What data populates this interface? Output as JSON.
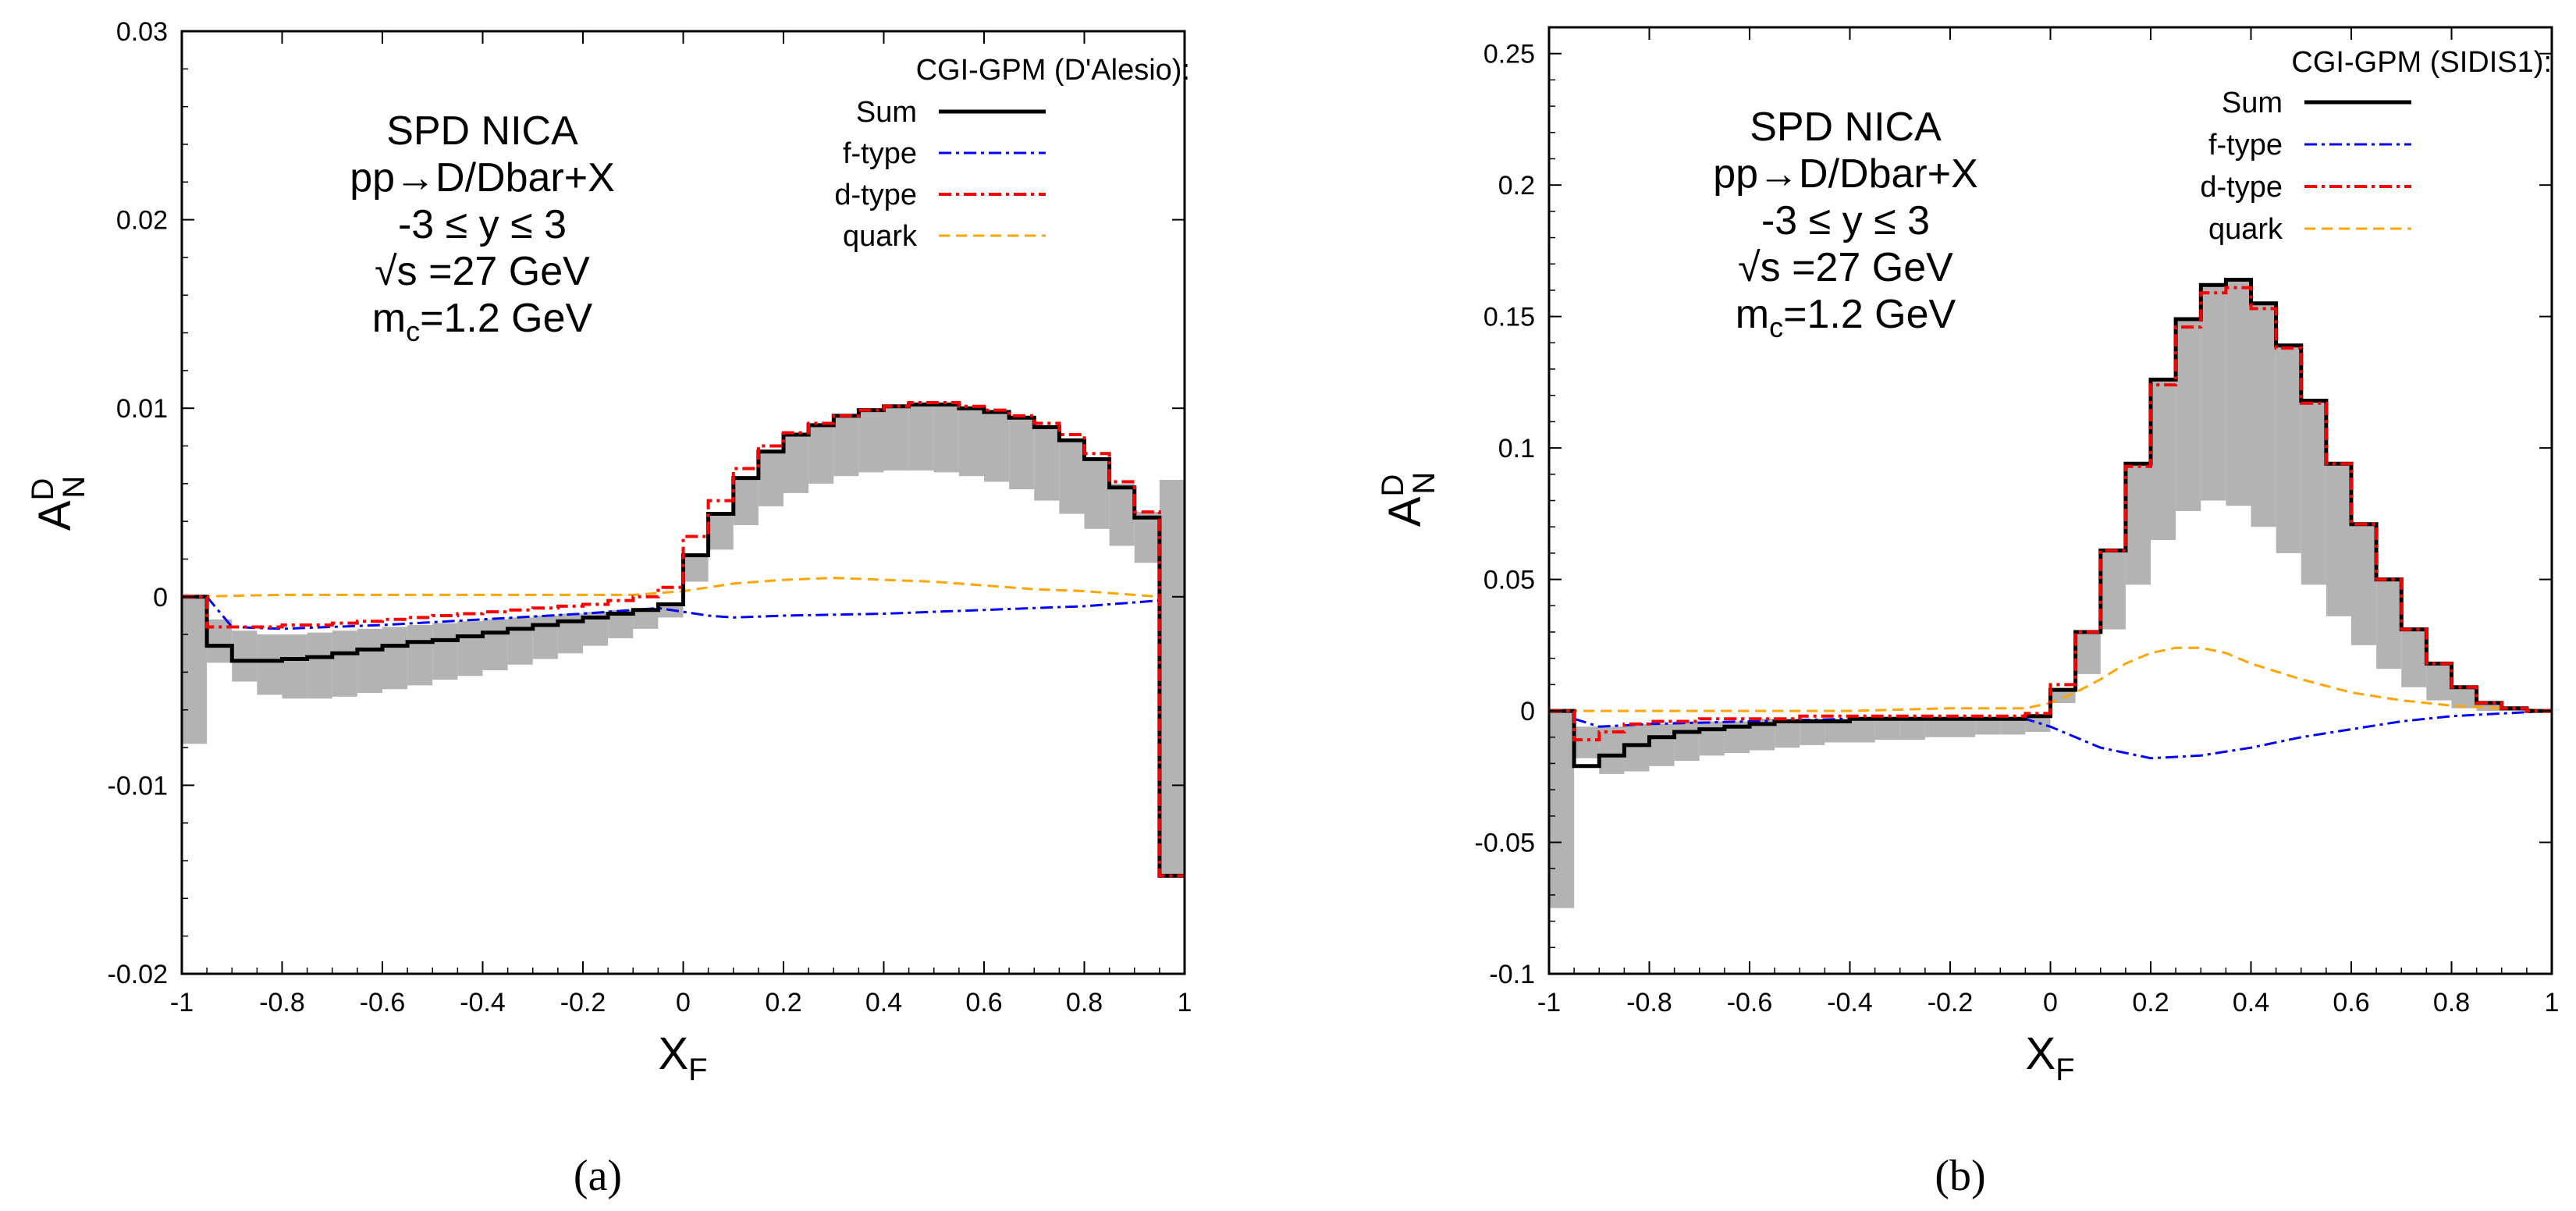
{
  "chart_data": [
    {
      "id": "a",
      "type": "line",
      "caption": "(a)",
      "xlabel": "X",
      "xlabel_sub": "F",
      "ylabel": "A",
      "ylabel_sup": "D",
      "ylabel_sub": "N",
      "xlim": [
        -1,
        1
      ],
      "ylim": [
        -0.02,
        0.03
      ],
      "xticks": [
        "-1",
        "-0.8",
        "-0.6",
        "-0.4",
        "-0.2",
        "0",
        "0.2",
        "0.4",
        "0.6",
        "0.8",
        "1"
      ],
      "yticks": [
        "-0.02",
        "-0.01",
        "0",
        "0.01",
        "0.02",
        "0.03"
      ],
      "xtick_values": [
        -1,
        -0.8,
        -0.6,
        -0.4,
        -0.2,
        0,
        0.2,
        0.4,
        0.6,
        0.8,
        1
      ],
      "ytick_values": [
        -0.02,
        -0.01,
        0,
        0.01,
        0.02,
        0.03
      ],
      "annotations": [
        "SPD NICA",
        "pp→D/Dbar+X",
        "-3 ≤ y ≤ 3",
        "√s =27 GeV"
      ],
      "mass_label": "m",
      "mass_sub": "c",
      "mass_value": "=1.2 GeV",
      "legend_title": "CGI-GPM (D'Alesio):",
      "bin_edges": [
        -1,
        -0.95,
        -0.9,
        -0.85,
        -0.8,
        -0.75,
        -0.7,
        -0.65,
        -0.6,
        -0.55,
        -0.5,
        -0.45,
        -0.4,
        -0.35,
        -0.3,
        -0.25,
        -0.2,
        -0.15,
        -0.1,
        -0.05,
        0,
        0.05,
        0.1,
        0.15,
        0.2,
        0.25,
        0.3,
        0.35,
        0.4,
        0.45,
        0.5,
        0.55,
        0.6,
        0.65,
        0.7,
        0.75,
        0.8,
        0.85,
        0.9,
        0.95,
        1
      ],
      "band": {
        "name": "uncertainty band",
        "color": "#b3b3b3",
        "upper": [
          0,
          -0.0012,
          -0.0018,
          -0.002,
          -0.002,
          -0.0019,
          -0.0018,
          -0.0017,
          -0.0016,
          -0.0015,
          -0.0014,
          -0.0013,
          -0.0012,
          -0.0011,
          -0.001,
          -0.0009,
          -0.0008,
          -0.0007,
          -0.0006,
          -0.0003,
          0.0022,
          0.0044,
          0.0063,
          0.0077,
          0.0086,
          0.0091,
          0.0096,
          0.0099,
          0.0101,
          0.0102,
          0.0102,
          0.01,
          0.0098,
          0.0095,
          0.009,
          0.0083,
          0.0073,
          0.006,
          0.0045,
          0.0062
        ],
        "lower": [
          -0.0078,
          -0.0035,
          -0.0045,
          -0.0052,
          -0.0054,
          -0.0054,
          -0.0053,
          -0.0051,
          -0.0049,
          -0.0047,
          -0.0044,
          -0.0042,
          -0.0039,
          -0.0036,
          -0.0033,
          -0.003,
          -0.0026,
          -0.0022,
          -0.0017,
          -0.0011,
          0.0008,
          0.0025,
          0.0038,
          0.0048,
          0.0055,
          0.006,
          0.0064,
          0.0066,
          0.0067,
          0.0067,
          0.0066,
          0.0064,
          0.0061,
          0.0057,
          0.0051,
          0.0044,
          0.0036,
          0.0027,
          0.0018,
          -0.0148
        ]
      },
      "series": [
        {
          "name": "Sum",
          "color": "#000000",
          "dash": "",
          "width": 5,
          "step": true,
          "values": [
            0,
            -0.0026,
            -0.0034,
            -0.0034,
            -0.0033,
            -0.0032,
            -0.003,
            -0.0028,
            -0.0026,
            -0.0024,
            -0.0023,
            -0.0021,
            -0.0019,
            -0.0017,
            -0.0015,
            -0.0013,
            -0.0011,
            -0.0009,
            -0.0007,
            -0.0004,
            0.0022,
            0.0044,
            0.0063,
            0.0077,
            0.0086,
            0.0091,
            0.0096,
            0.0099,
            0.0101,
            0.0102,
            0.0102,
            0.01,
            0.0098,
            0.0095,
            0.009,
            0.0083,
            0.0073,
            0.0058,
            0.0042,
            -0.0148
          ]
        },
        {
          "name": "f-type",
          "color": "#0000ff",
          "dash": "16,6,4,6",
          "width": 3,
          "step": false,
          "x": [
            -0.95,
            -0.9,
            -0.8,
            -0.6,
            -0.4,
            -0.2,
            -0.1,
            -0.05,
            0,
            0.05,
            0.1,
            0.2,
            0.4,
            0.6,
            0.8,
            0.95
          ],
          "values": [
            0,
            -0.0016,
            -0.0017,
            -0.0015,
            -0.0012,
            -0.0009,
            -0.0007,
            -0.0006,
            -0.0008,
            -0.001,
            -0.0011,
            -0.001,
            -0.0009,
            -0.0007,
            -0.0005,
            -0.0002
          ]
        },
        {
          "name": "d-type",
          "color": "#ff0000",
          "dash": "16,6,4,6",
          "width": 4,
          "step": true,
          "values": [
            0,
            -0.0016,
            -0.0016,
            -0.0016,
            -0.0015,
            -0.0015,
            -0.0014,
            -0.0013,
            -0.0012,
            -0.0011,
            -0.001,
            -0.0009,
            -0.0008,
            -0.0007,
            -0.0006,
            -0.0005,
            -0.0004,
            -0.0002,
            0,
            0.0005,
            0.0032,
            0.0051,
            0.0068,
            0.008,
            0.0087,
            0.0092,
            0.0096,
            0.0099,
            0.0101,
            0.0103,
            0.0103,
            0.0101,
            0.0099,
            0.0096,
            0.0092,
            0.0086,
            0.0076,
            0.0061,
            0.0045,
            -0.0148
          ]
        },
        {
          "name": "quark",
          "color": "#ffa500",
          "dash": "14,8",
          "width": 3,
          "step": false,
          "x": [
            -1,
            -0.8,
            -0.6,
            -0.4,
            -0.2,
            -0.1,
            0,
            0.1,
            0.2,
            0.3,
            0.4,
            0.5,
            0.6,
            0.7,
            0.8,
            0.9,
            0.95
          ],
          "values": [
            0,
            0.0001,
            0.0001,
            0.0001,
            0.0001,
            0.0001,
            0.0003,
            0.0007,
            0.0009,
            0.001,
            0.0009,
            0.0008,
            0.0006,
            0.0004,
            0.0003,
            0.0001,
            0
          ]
        }
      ]
    },
    {
      "id": "b",
      "type": "line",
      "caption": "(b)",
      "xlabel": "X",
      "xlabel_sub": "F",
      "ylabel": "A",
      "ylabel_sup": "D",
      "ylabel_sub": "N",
      "xlim": [
        -1,
        1
      ],
      "ylim": [
        -0.1,
        0.26
      ],
      "xticks": [
        "-1",
        "-0.8",
        "-0.6",
        "-0.4",
        "-0.2",
        "0",
        "0.2",
        "0.4",
        "0.6",
        "0.8",
        "1"
      ],
      "yticks": [
        "-0.1",
        "-0.05",
        "0",
        "0.05",
        "0.1",
        "0.15",
        "0.2",
        "0.25"
      ],
      "xtick_values": [
        -1,
        -0.8,
        -0.6,
        -0.4,
        -0.2,
        0,
        0.2,
        0.4,
        0.6,
        0.8,
        1
      ],
      "ytick_values": [
        -0.1,
        -0.05,
        0,
        0.05,
        0.1,
        0.15,
        0.2,
        0.25
      ],
      "annotations": [
        "SPD NICA",
        "pp→D/Dbar+X",
        "-3 ≤ y ≤ 3",
        "√s =27 GeV"
      ],
      "mass_label": "m",
      "mass_sub": "c",
      "mass_value": "=1.2 GeV",
      "legend_title": "CGI-GPM (SIDIS1):",
      "bin_edges": [
        -1,
        -0.95,
        -0.9,
        -0.85,
        -0.8,
        -0.75,
        -0.7,
        -0.65,
        -0.6,
        -0.55,
        -0.5,
        -0.45,
        -0.4,
        -0.35,
        -0.3,
        -0.25,
        -0.2,
        -0.15,
        -0.1,
        -0.05,
        0,
        0.05,
        0.1,
        0.15,
        0.2,
        0.25,
        0.3,
        0.35,
        0.4,
        0.45,
        0.5,
        0.55,
        0.6,
        0.65,
        0.7,
        0.75,
        0.8,
        0.85,
        0.9,
        0.95,
        1
      ],
      "band": {
        "name": "uncertainty band",
        "color": "#b3b3b3",
        "upper": [
          0,
          -0.006,
          -0.006,
          -0.005,
          -0.005,
          -0.004,
          -0.004,
          -0.004,
          -0.003,
          -0.003,
          -0.003,
          -0.003,
          -0.003,
          -0.003,
          -0.003,
          -0.003,
          -0.003,
          -0.003,
          -0.003,
          -0.002,
          0.008,
          0.03,
          0.061,
          0.094,
          0.126,
          0.149,
          0.162,
          0.164,
          0.155,
          0.139,
          0.118,
          0.094,
          0.071,
          0.05,
          0.031,
          0.018,
          0.009,
          0.003,
          0.001,
          0
        ],
        "lower": [
          -0.075,
          -0.018,
          -0.024,
          -0.023,
          -0.021,
          -0.019,
          -0.017,
          -0.016,
          -0.015,
          -0.014,
          -0.013,
          -0.012,
          -0.012,
          -0.011,
          -0.011,
          -0.01,
          -0.01,
          -0.009,
          -0.009,
          -0.008,
          0.003,
          0.014,
          0.031,
          0.048,
          0.065,
          0.076,
          0.08,
          0.078,
          0.07,
          0.06,
          0.048,
          0.036,
          0.025,
          0.016,
          0.009,
          0.004,
          0.001,
          0,
          0,
          0
        ]
      },
      "series": [
        {
          "name": "Sum",
          "color": "#000000",
          "dash": "",
          "width": 5,
          "step": true,
          "values": [
            0,
            -0.021,
            -0.017,
            -0.013,
            -0.01,
            -0.008,
            -0.007,
            -0.006,
            -0.005,
            -0.004,
            -0.004,
            -0.004,
            -0.003,
            -0.003,
            -0.003,
            -0.003,
            -0.003,
            -0.003,
            -0.003,
            -0.002,
            0.008,
            0.03,
            0.061,
            0.094,
            0.126,
            0.149,
            0.162,
            0.164,
            0.155,
            0.139,
            0.118,
            0.094,
            0.071,
            0.05,
            0.031,
            0.018,
            0.009,
            0.003,
            0.001,
            0
          ]
        },
        {
          "name": "f-type",
          "color": "#0000ff",
          "dash": "16,6,4,6",
          "width": 3,
          "step": false,
          "x": [
            -0.95,
            -0.9,
            -0.8,
            -0.6,
            -0.4,
            -0.2,
            -0.05,
            0,
            0.05,
            0.1,
            0.2,
            0.3,
            0.4,
            0.5,
            0.6,
            0.7,
            0.8,
            0.9,
            1
          ],
          "values": [
            -0.003,
            -0.006,
            -0.005,
            -0.004,
            -0.003,
            -0.003,
            -0.003,
            -0.006,
            -0.01,
            -0.014,
            -0.018,
            -0.017,
            -0.014,
            -0.01,
            -0.007,
            -0.004,
            -0.002,
            -0.001,
            0
          ]
        },
        {
          "name": "d-type",
          "color": "#ff0000",
          "dash": "16,6,4,6",
          "width": 4,
          "step": true,
          "values": [
            0,
            -0.011,
            -0.008,
            -0.005,
            -0.004,
            -0.004,
            -0.003,
            -0.003,
            -0.003,
            -0.003,
            -0.002,
            -0.002,
            -0.002,
            -0.002,
            -0.002,
            -0.002,
            -0.002,
            -0.002,
            -0.002,
            -0.001,
            0.01,
            0.03,
            0.061,
            0.093,
            0.124,
            0.146,
            0.159,
            0.161,
            0.153,
            0.138,
            0.117,
            0.094,
            0.071,
            0.05,
            0.031,
            0.018,
            0.009,
            0.003,
            0.001,
            0
          ]
        },
        {
          "name": "quark",
          "color": "#ffa500",
          "dash": "14,8",
          "width": 3,
          "step": false,
          "x": [
            -1,
            -0.8,
            -0.6,
            -0.4,
            -0.2,
            -0.05,
            0,
            0.05,
            0.1,
            0.15,
            0.2,
            0.25,
            0.3,
            0.35,
            0.4,
            0.5,
            0.6,
            0.7,
            0.8,
            0.9,
            1
          ],
          "values": [
            0,
            0,
            0,
            0,
            0.001,
            0.001,
            0.003,
            0.007,
            0.012,
            0.018,
            0.022,
            0.024,
            0.024,
            0.022,
            0.018,
            0.012,
            0.007,
            0.004,
            0.002,
            0.001,
            0
          ]
        }
      ]
    }
  ]
}
